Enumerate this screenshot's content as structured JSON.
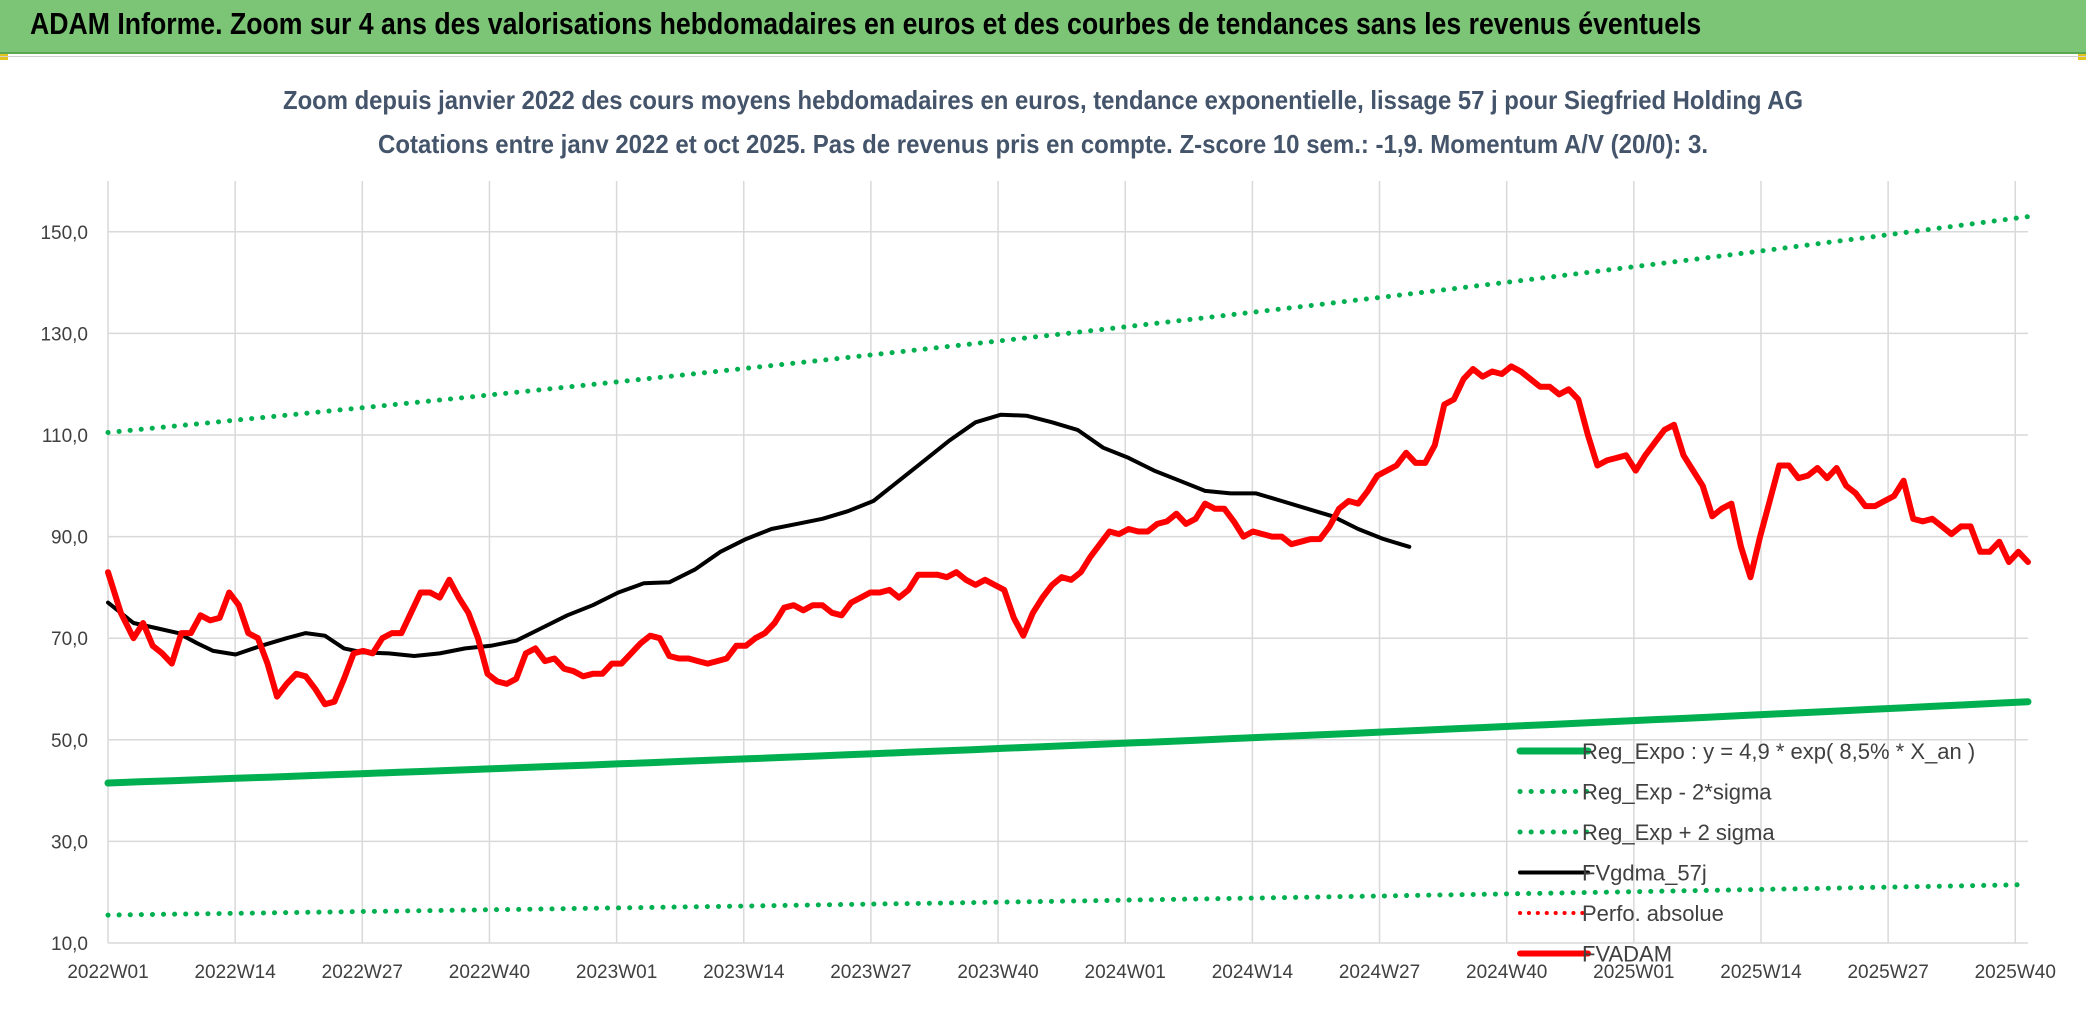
{
  "header": {
    "banner_title": "ADAM Informe. Zoom sur 4 ans des valorisations hebdomadaires en euros et des courbes de tendances sans les revenus éventuels",
    "accent_color": "#7cc576"
  },
  "chart_data": {
    "type": "line",
    "title": "Zoom depuis janvier 2022 des cours moyens hebdomadaires en euros, tendance exponentielle, lissage 57 j pour Siegfried Holding AG",
    "subtitle": "Cotations entre janv 2022 et oct 2025. Pas de revenus pris en compte. Z-score 10 sem.: -1,9. Momentum A/V (20/0): 3.",
    "xlabel": "",
    "ylabel": "",
    "ylim": [
      10,
      160
    ],
    "yticks": [
      "10,0",
      "30,0",
      "50,0",
      "70,0",
      "90,0",
      "110,0",
      "130,0",
      "150,0"
    ],
    "xticks": [
      "2022W01",
      "2022W14",
      "2022W27",
      "2022W40",
      "2023W01",
      "2023W14",
      "2023W27",
      "2023W40",
      "2024W01",
      "2024W14",
      "2024W27",
      "2024W40",
      "2025W01",
      "2025W14",
      "2025W27",
      "2025W40"
    ],
    "x_count": 201,
    "grid": true,
    "legend_position": "bottom-right",
    "series": [
      {
        "name": "Reg_Expo : y = 4,9 * exp( 8,5% * X_an )",
        "style": "solid",
        "color": "#00b050",
        "width": 7,
        "start": 41.5,
        "end": 57.5
      },
      {
        "name": "Reg_Exp - 2*sigma",
        "style": "dotted",
        "color": "#00b050",
        "width": 5,
        "start": 15.5,
        "end": 21.5
      },
      {
        "name": "Reg_Exp + 2 sigma",
        "style": "dotted",
        "color": "#00b050",
        "width": 5,
        "start": 110.5,
        "end": 153
      },
      {
        "name": "FVgdma_57j",
        "style": "solid",
        "color": "#000000",
        "width": 4,
        "points": [
          [
            0,
            77
          ],
          [
            8,
            73
          ],
          [
            15,
            72
          ],
          [
            22,
            71
          ],
          [
            28,
            69
          ],
          [
            33,
            67.5
          ],
          [
            40,
            66.8
          ],
          [
            48,
            68.5
          ],
          [
            56,
            70
          ],
          [
            62,
            71
          ],
          [
            68,
            70.5
          ],
          [
            74,
            68
          ],
          [
            80,
            67.2
          ],
          [
            88,
            67
          ],
          [
            96,
            66.5
          ],
          [
            104,
            67
          ],
          [
            112,
            68
          ],
          [
            120,
            68.5
          ],
          [
            128,
            69.5
          ],
          [
            136,
            72
          ],
          [
            144,
            74.5
          ],
          [
            152,
            76.5
          ],
          [
            160,
            79
          ],
          [
            168,
            80.8
          ],
          [
            176,
            81
          ],
          [
            184,
            83.5
          ],
          [
            192,
            87
          ],
          [
            200,
            89.5
          ],
          [
            208,
            91.5
          ],
          [
            216,
            92.5
          ],
          [
            224,
            93.5
          ],
          [
            232,
            95
          ],
          [
            240,
            97
          ],
          [
            248,
            101
          ],
          [
            256,
            105
          ],
          [
            264,
            109
          ],
          [
            272,
            112.5
          ],
          [
            280,
            114
          ],
          [
            288,
            113.8
          ],
          [
            296,
            112.5
          ],
          [
            304,
            111
          ],
          [
            312,
            107.5
          ],
          [
            320,
            105.5
          ],
          [
            328,
            103
          ],
          [
            336,
            101
          ],
          [
            344,
            99
          ],
          [
            352,
            98.5
          ],
          [
            360,
            98.5
          ],
          [
            368,
            97
          ],
          [
            376,
            95.5
          ],
          [
            384,
            94
          ],
          [
            392,
            91.5
          ],
          [
            400,
            89.5
          ],
          [
            408,
            88
          ]
        ]
      },
      {
        "name": "Perfo. absolue",
        "style": "dotted",
        "color": "#ff0000",
        "width": 4,
        "points": []
      },
      {
        "name": "FVADAM",
        "style": "solid",
        "color": "#ff0000",
        "width": 6,
        "points": [
          [
            0,
            83
          ],
          [
            4,
            75
          ],
          [
            8,
            70
          ],
          [
            11,
            73
          ],
          [
            14,
            68.5
          ],
          [
            17,
            67
          ],
          [
            20,
            65
          ],
          [
            23,
            71
          ],
          [
            26,
            71
          ],
          [
            29,
            74.5
          ],
          [
            32,
            73.5
          ],
          [
            35,
            74
          ],
          [
            38,
            79
          ],
          [
            41,
            76.5
          ],
          [
            44,
            71
          ],
          [
            47,
            70
          ],
          [
            50,
            65
          ],
          [
            53,
            58.5
          ],
          [
            56,
            61
          ],
          [
            59,
            63
          ],
          [
            62,
            62.5
          ],
          [
            65,
            60
          ],
          [
            68,
            57
          ],
          [
            71,
            57.5
          ],
          [
            74,
            62
          ],
          [
            77,
            67
          ],
          [
            80,
            67.5
          ],
          [
            83,
            67
          ],
          [
            86,
            70
          ],
          [
            89,
            71
          ],
          [
            92,
            71
          ],
          [
            95,
            75
          ],
          [
            98,
            79
          ],
          [
            101,
            79
          ],
          [
            104,
            78
          ],
          [
            107,
            81.5
          ],
          [
            110,
            78
          ],
          [
            113,
            75
          ],
          [
            116,
            70
          ],
          [
            119,
            63
          ],
          [
            122,
            61.5
          ],
          [
            125,
            61
          ],
          [
            128,
            62
          ],
          [
            131,
            67
          ],
          [
            134,
            68
          ],
          [
            137,
            65.5
          ],
          [
            140,
            66
          ],
          [
            143,
            64
          ],
          [
            146,
            63.5
          ],
          [
            149,
            62.5
          ],
          [
            152,
            63
          ],
          [
            155,
            63
          ],
          [
            158,
            65
          ],
          [
            161,
            65
          ],
          [
            164,
            67
          ],
          [
            167,
            69
          ],
          [
            170,
            70.5
          ],
          [
            173,
            70
          ],
          [
            176,
            66.5
          ],
          [
            179,
            66
          ],
          [
            182,
            66
          ],
          [
            185,
            65.5
          ],
          [
            188,
            65
          ],
          [
            191,
            65.5
          ],
          [
            194,
            66
          ],
          [
            197,
            68.5
          ],
          [
            200,
            68.5
          ],
          [
            203,
            70
          ],
          [
            206,
            71
          ],
          [
            209,
            73
          ],
          [
            212,
            76
          ],
          [
            215,
            76.5
          ],
          [
            218,
            75.5
          ],
          [
            221,
            76.5
          ],
          [
            224,
            76.5
          ],
          [
            227,
            75
          ],
          [
            230,
            74.5
          ],
          [
            233,
            77
          ],
          [
            236,
            78
          ],
          [
            239,
            79
          ],
          [
            242,
            79
          ],
          [
            245,
            79.5
          ],
          [
            248,
            78
          ],
          [
            251,
            79.5
          ],
          [
            254,
            82.5
          ],
          [
            257,
            82.5
          ],
          [
            260,
            82.5
          ],
          [
            263,
            82
          ],
          [
            266,
            83
          ],
          [
            269,
            81.5
          ],
          [
            272,
            80.5
          ],
          [
            275,
            81.5
          ],
          [
            278,
            80.5
          ],
          [
            281,
            79.5
          ],
          [
            284,
            74
          ],
          [
            287,
            70.5
          ],
          [
            290,
            75
          ],
          [
            293,
            78
          ],
          [
            296,
            80.5
          ],
          [
            299,
            82
          ],
          [
            302,
            81.5
          ],
          [
            305,
            83
          ],
          [
            308,
            86
          ],
          [
            311,
            88.5
          ],
          [
            314,
            91
          ],
          [
            317,
            90.5
          ],
          [
            320,
            91.5
          ],
          [
            323,
            91
          ],
          [
            326,
            91
          ],
          [
            329,
            92.5
          ],
          [
            332,
            93
          ],
          [
            335,
            94.5
          ],
          [
            338,
            92.5
          ],
          [
            341,
            93.5
          ],
          [
            344,
            96.5
          ],
          [
            347,
            95.5
          ],
          [
            350,
            95.5
          ],
          [
            353,
            93
          ],
          [
            356,
            90
          ],
          [
            359,
            91
          ],
          [
            362,
            90.5
          ],
          [
            365,
            90
          ],
          [
            368,
            90
          ],
          [
            371,
            88.5
          ],
          [
            374,
            89
          ],
          [
            377,
            89.5
          ],
          [
            380,
            89.5
          ],
          [
            383,
            92
          ],
          [
            386,
            95.5
          ],
          [
            389,
            97
          ],
          [
            392,
            96.5
          ],
          [
            395,
            99
          ],
          [
            398,
            102
          ],
          [
            401,
            103
          ],
          [
            404,
            104
          ],
          [
            407,
            106.5
          ],
          [
            410,
            104.5
          ],
          [
            413,
            104.5
          ],
          [
            416,
            108
          ],
          [
            419,
            116
          ],
          [
            422,
            117
          ],
          [
            425,
            121
          ],
          [
            428,
            123
          ],
          [
            431,
            121.5
          ],
          [
            434,
            122.5
          ],
          [
            437,
            122
          ],
          [
            440,
            123.5
          ],
          [
            443,
            122.5
          ],
          [
            446,
            121
          ],
          [
            449,
            119.5
          ],
          [
            452,
            119.5
          ],
          [
            455,
            118
          ],
          [
            458,
            119
          ],
          [
            461,
            117
          ],
          [
            464,
            110
          ],
          [
            467,
            104
          ],
          [
            470,
            105
          ],
          [
            473,
            105.5
          ],
          [
            476,
            106
          ],
          [
            479,
            103
          ],
          [
            482,
            106
          ],
          [
            485,
            108.5
          ],
          [
            488,
            111
          ],
          [
            491,
            112
          ],
          [
            494,
            106
          ],
          [
            497,
            103
          ],
          [
            500,
            100
          ],
          [
            503,
            94
          ],
          [
            506,
            95.5
          ],
          [
            509,
            96.5
          ],
          [
            512,
            88
          ],
          [
            515,
            82
          ],
          [
            518,
            90
          ],
          [
            521,
            97
          ],
          [
            524,
            104
          ],
          [
            527,
            104
          ],
          [
            530,
            101.5
          ],
          [
            533,
            102
          ],
          [
            536,
            103.5
          ],
          [
            539,
            101.5
          ],
          [
            542,
            103.5
          ],
          [
            545,
            100
          ],
          [
            548,
            98.5
          ],
          [
            551,
            96
          ],
          [
            554,
            96
          ],
          [
            557,
            97
          ],
          [
            560,
            98
          ],
          [
            563,
            101
          ],
          [
            566,
            93.5
          ],
          [
            569,
            93
          ],
          [
            572,
            93.5
          ],
          [
            575,
            92
          ],
          [
            578,
            90.5
          ],
          [
            581,
            92
          ],
          [
            584,
            92
          ],
          [
            587,
            87
          ],
          [
            590,
            87
          ],
          [
            593,
            89
          ],
          [
            596,
            85
          ],
          [
            599,
            87
          ],
          [
            602,
            85
          ]
        ]
      }
    ]
  }
}
